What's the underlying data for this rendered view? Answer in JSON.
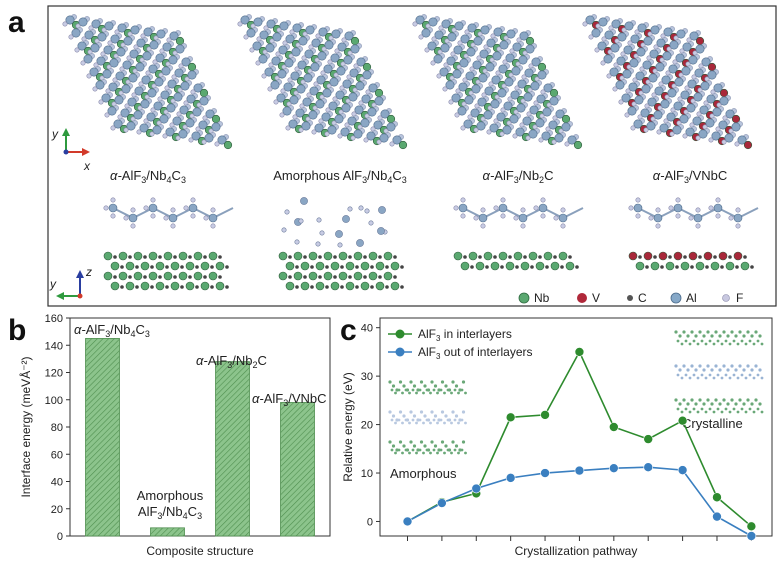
{
  "panel_a": {
    "letter": "a",
    "top_captions": [
      {
        "pre": "α-",
        "main": "AlF",
        "sub": "3",
        "mid": "/Nb",
        "sub2": "4",
        "tail": "C",
        "sub3": "3"
      },
      {
        "pre": "",
        "main": "Amorphous AlF",
        "sub": "3",
        "mid": "/Nb",
        "sub2": "4",
        "tail": "C",
        "sub3": "3"
      },
      {
        "pre": "α-",
        "main": "AlF",
        "sub": "3",
        "mid": "/Nb",
        "sub2": "2",
        "tail": "C",
        "sub3": ""
      },
      {
        "pre": "α-",
        "main": "AlF",
        "sub": "3",
        "mid": "/VNbC",
        "sub2": "",
        "tail": "",
        "sub3": ""
      }
    ],
    "axes_top": {
      "y": "y",
      "x": "x"
    },
    "axes_bottom": {
      "z": "z",
      "y": "y"
    },
    "legend": [
      {
        "label": "Nb",
        "color": "#5aa870"
      },
      {
        "label": "V",
        "color": "#b0283a"
      },
      {
        "label": "C",
        "color": "#555555"
      },
      {
        "label": "Al",
        "color": "#86a8c8"
      },
      {
        "label": "F",
        "color": "#c8c8e0"
      }
    ]
  },
  "chart_data": [
    {
      "type": "bar",
      "letter": "b",
      "categories": [
        "α-AlF3/Nb4C3",
        "Amorphous AlF3/Nb4C3",
        "α-AlF3/Nb2C",
        "α-AlF3/VNbC"
      ],
      "values": [
        145,
        6,
        128,
        98
      ],
      "xlabel": "Composite structure",
      "ylabel": "Interface energy (meVÅ⁻²)",
      "ylim": [
        0,
        160
      ],
      "yticks": [
        0,
        20,
        40,
        60,
        80,
        100,
        120,
        140,
        160
      ],
      "bar_color": "#8cc48c",
      "bar_labels": [
        {
          "pre": "α-",
          "main": "AlF",
          "s1": "3",
          "mid": "/Nb",
          "s2": "4",
          "tail": "C",
          "s3": "3"
        },
        {
          "line1": "Amorphous",
          "main": "AlF",
          "s1": "3",
          "mid": "/Nb",
          "s2": "4",
          "tail": "C",
          "s3": "3"
        },
        {
          "pre": "α-",
          "main": "AlF",
          "s1": "3",
          "mid": "/Nb",
          "s2": "2",
          "tail": "C",
          "s3": ""
        },
        {
          "pre": "α-",
          "main": "AlF",
          "s1": "3",
          "mid": "/VNbC",
          "s2": "",
          "tail": "",
          "s3": ""
        }
      ]
    },
    {
      "type": "line",
      "letter": "c",
      "x": [
        1,
        2,
        3,
        4,
        5,
        6,
        7,
        8,
        9,
        10,
        11
      ],
      "series": [
        {
          "name": "AlF3 in interlayers",
          "color": "#2e8b2e",
          "values": [
            0,
            4,
            5.8,
            21.5,
            22,
            35,
            19.5,
            17,
            20.8,
            5,
            -1
          ]
        },
        {
          "name": "AlF3 out of interlayers",
          "color": "#3a7fc0",
          "values": [
            0,
            3.8,
            6.8,
            9,
            10,
            10.5,
            11,
            11.2,
            10.6,
            1,
            -3
          ]
        }
      ],
      "legend_items": [
        {
          "main": "AlF",
          "sub": "3",
          "rest": " in interlayers"
        },
        {
          "main": "AlF",
          "sub": "3",
          "rest": " out of interlayers"
        }
      ],
      "xlabel": "Crystallization pathway",
      "ylabel": "Relative energy (eV)",
      "ylim": [
        -3,
        42
      ],
      "yticks": [
        0,
        10,
        20,
        30,
        40
      ],
      "annotations": [
        "Amorphous",
        "Crystalline"
      ],
      "legend_position": "top-left"
    }
  ]
}
